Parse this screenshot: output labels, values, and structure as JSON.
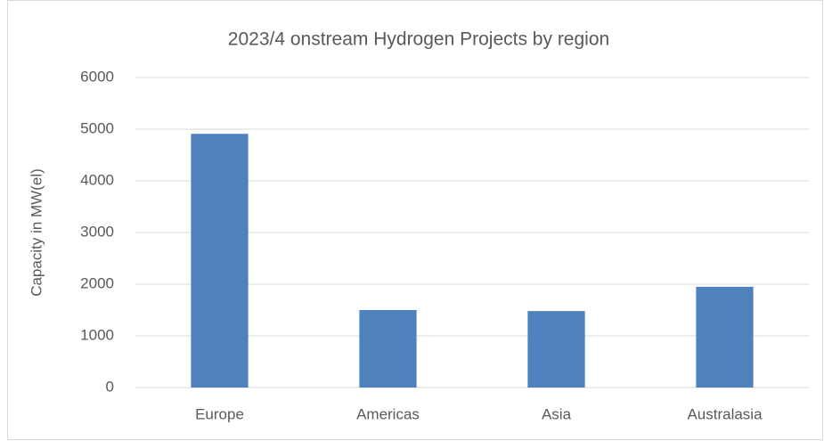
{
  "chart_data": {
    "type": "bar",
    "title": "2023/4 onstream Hydrogen Projects by region",
    "y_label": "Capacity in MW(el)",
    "categories": [
      "Europe",
      "Americas",
      "Asia",
      "Australasia"
    ],
    "values": [
      4910,
      1500,
      1480,
      1950
    ],
    "color": "#4f81bd",
    "ylim": [
      0,
      6000
    ],
    "yticks": [
      0,
      1000,
      2000,
      3000,
      4000,
      5000,
      6000
    ],
    "grid": true
  }
}
